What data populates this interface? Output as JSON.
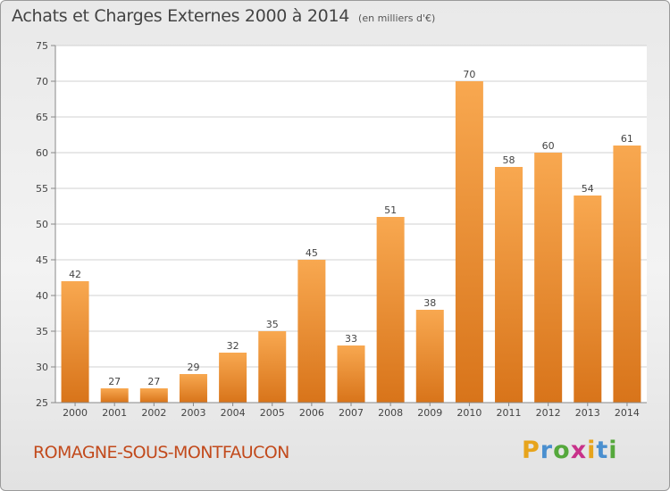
{
  "title": "Achats et Charges Externes 2000 à 2014",
  "subtitle": "(en milliers d'€)",
  "commune": "ROMAGNE-SOUS-MONTFAUCON",
  "logo": {
    "letters": [
      "P",
      "r",
      "o",
      "x",
      "i",
      "t",
      "i"
    ],
    "colors": [
      "#e7a41c",
      "#4a8fcf",
      "#55a83c",
      "#c8318a",
      "#e7a41c",
      "#4a8fcf",
      "#55a83c"
    ]
  },
  "colors": {
    "bar_light": "#f8a850",
    "bar_dark": "#d8741a",
    "axis_text": "#444444",
    "grid": "#d0d0d0"
  },
  "chart_data": {
    "type": "bar",
    "categories": [
      "2000",
      "2001",
      "2002",
      "2003",
      "2004",
      "2005",
      "2006",
      "2007",
      "2008",
      "2009",
      "2010",
      "2011",
      "2012",
      "2013",
      "2014"
    ],
    "values": [
      42,
      27,
      27,
      29,
      32,
      35,
      45,
      33,
      51,
      38,
      70,
      58,
      60,
      54,
      61
    ],
    "ylim": [
      25,
      75
    ],
    "yticks": [
      25,
      30,
      35,
      40,
      45,
      50,
      55,
      60,
      65,
      70,
      75
    ],
    "grid": true,
    "data_labels": true
  }
}
